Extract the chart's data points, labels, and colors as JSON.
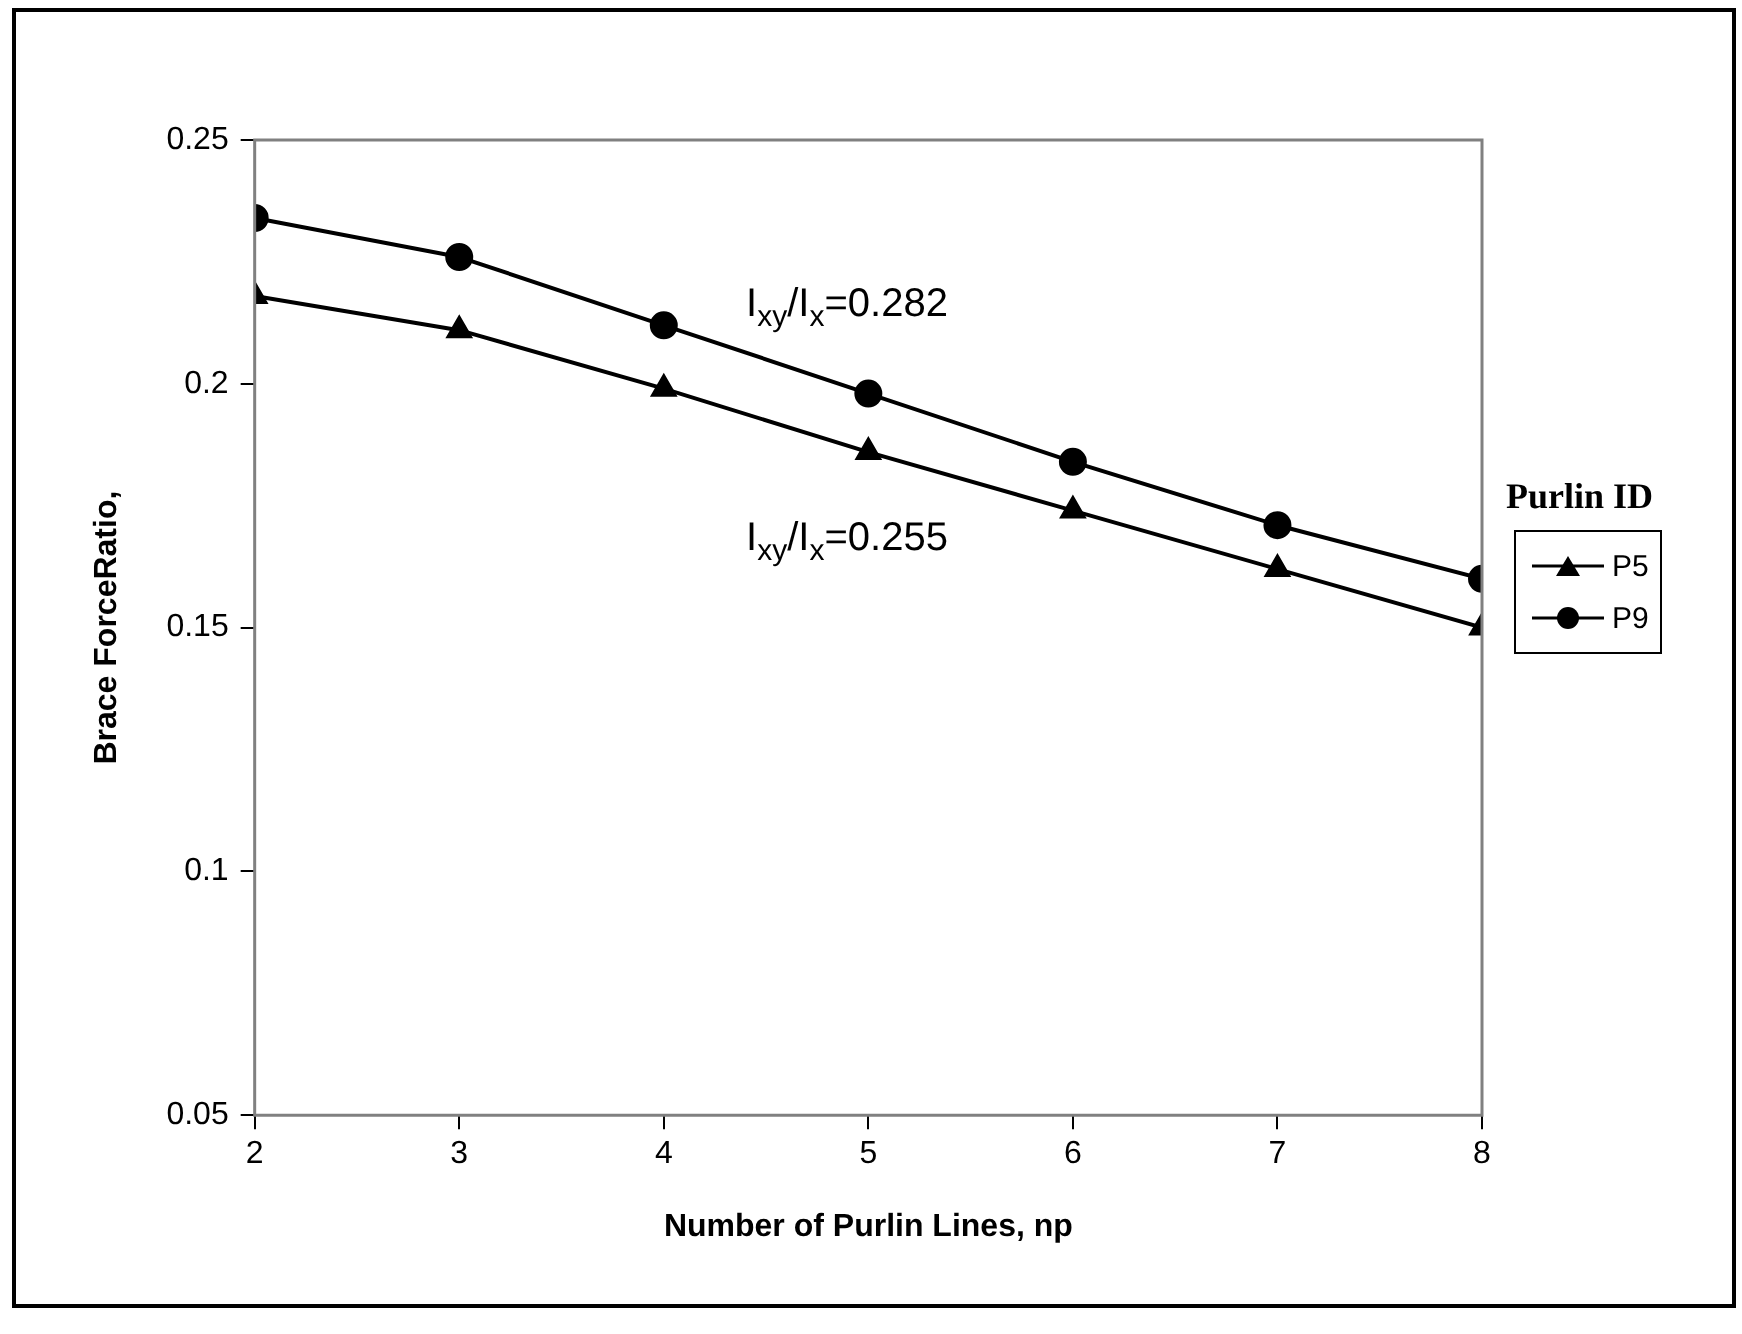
{
  "chart_data": {
    "type": "line",
    "xlabel": "Number of Purlin Lines, np",
    "ylabel": "Brace ForceRatio,",
    "legend_title": "Purlin ID",
    "legend": "right",
    "grid": false,
    "line_style": "solid",
    "x": [
      2,
      3,
      4,
      5,
      6,
      7,
      8
    ],
    "xlim": [
      2,
      8
    ],
    "xticks": [
      2,
      3,
      4,
      5,
      6,
      7,
      8
    ],
    "ylim": [
      0.05,
      0.25
    ],
    "yticks": [
      0.05,
      0.1,
      0.15,
      0.2,
      0.25
    ],
    "series": [
      {
        "name": "P5",
        "color": "#000000",
        "marker": "triangle",
        "values": [
          0.218,
          0.211,
          0.199,
          0.186,
          0.174,
          0.162,
          0.15
        ]
      },
      {
        "name": "P9",
        "color": "#000000",
        "marker": "circle",
        "values": [
          0.234,
          0.226,
          0.212,
          0.198,
          0.184,
          0.171,
          0.16
        ]
      }
    ],
    "annotations": [
      "I$_{xy}$/I$_{x}$=0.282",
      "I$_{xy}$/I$_{x}$=0.255"
    ]
  }
}
